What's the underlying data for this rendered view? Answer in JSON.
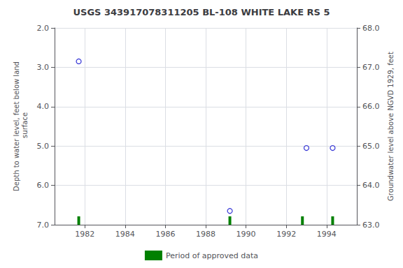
{
  "chart_data": {
    "type": "scatter",
    "title": "USGS 343917078311205 BL-108 WHITE LAKE RS 5",
    "ylabel": "Depth to water level, feet below land\n surface",
    "y2label": "Groundwater level above NGVD 1929, feet",
    "xlim": [
      1980.5,
      1995.5
    ],
    "xticks": [
      1982,
      1984,
      1986,
      1988,
      1990,
      1992,
      1994
    ],
    "ylim": [
      7.0,
      2.0
    ],
    "yticks": [
      {
        "value": 2.0,
        "label": "2.0"
      },
      {
        "value": 3.0,
        "label": "3.0"
      },
      {
        "value": 4.0,
        "label": "4.0"
      },
      {
        "value": 5.0,
        "label": "5.0"
      },
      {
        "value": 6.0,
        "label": "6.0"
      },
      {
        "value": 7.0,
        "label": "7.0"
      }
    ],
    "y2lim": [
      63.0,
      68.0
    ],
    "y2ticks": [
      {
        "value": 68.0,
        "label": "68.0"
      },
      {
        "value": 67.0,
        "label": "67.0"
      },
      {
        "value": 66.0,
        "label": "66.0"
      },
      {
        "value": 65.0,
        "label": "65.0"
      },
      {
        "value": 64.0,
        "label": "64.0"
      },
      {
        "value": 63.0,
        "label": "63.0"
      }
    ],
    "series": [
      {
        "type": "scatter",
        "color": "#0000cc",
        "marker": "open circle",
        "x": [
          1981.7,
          1989.2,
          1993.0,
          1994.3
        ],
        "values": [
          2.85,
          6.65,
          5.05,
          5.05
        ]
      },
      {
        "type": "rug",
        "name": "Period of approved data",
        "color": "#008000",
        "x": [
          1981.7,
          1989.2,
          1992.8,
          1994.3
        ]
      }
    ],
    "grid": true,
    "legend": "bottom"
  }
}
